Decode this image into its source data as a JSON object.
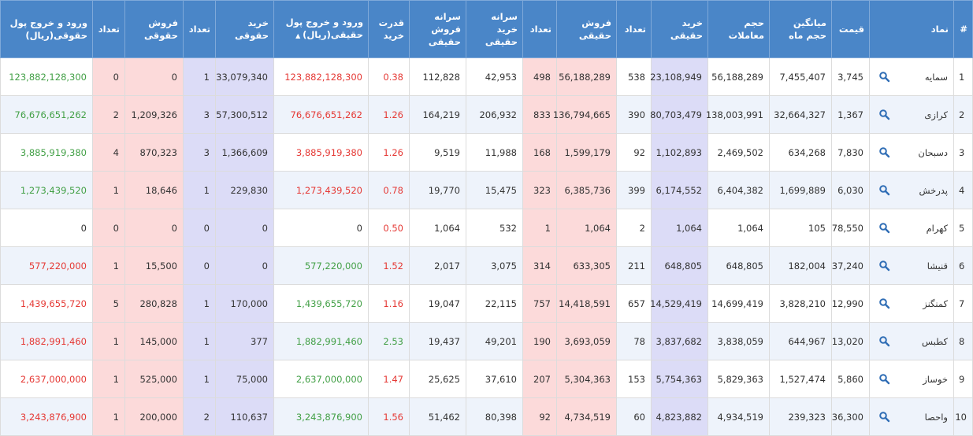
{
  "table": {
    "headers": [
      "#",
      "نماد",
      "قیمت",
      "میانگین حجم ماه",
      "حجم معاملات",
      "خرید حقیقی",
      "تعداد",
      "فروش حقیقی",
      "تعداد",
      "سرانه خرید حقیقی",
      "سرانه فروش حقیقی",
      "قدرت خرید",
      "ورود و خروج پول حقیقی(ریال)",
      "خرید حقوقی",
      "تعداد",
      "فروش حقوقی",
      "تعداد",
      "ورود و خروج پول حقوقی(ریال)"
    ],
    "rows": [
      [
        "1",
        "سمایه",
        "3,745",
        "7,455,407",
        "56,188,289",
        "23,108,949",
        "538",
        "56,188,289",
        "498",
        "42,953",
        "112,828",
        "0.38",
        "123,882,128,300",
        "33,079,340",
        "1",
        "0",
        "0",
        "123,882,128,300"
      ],
      [
        "2",
        "کرازی",
        "1,367",
        "32,664,327",
        "138,003,991",
        "80,703,479",
        "390",
        "136,794,665",
        "833",
        "206,932",
        "164,219",
        "1.26",
        "76,676,651,262",
        "57,300,512",
        "3",
        "1,209,326",
        "2",
        "76,676,651,262"
      ],
      [
        "3",
        "دسبحان",
        "7,830",
        "634,268",
        "2,469,502",
        "1,102,893",
        "92",
        "1,599,179",
        "168",
        "11,988",
        "9,519",
        "1.26",
        "3,885,919,380",
        "1,366,609",
        "3",
        "870,323",
        "4",
        "3,885,919,380"
      ],
      [
        "4",
        "پدرخش",
        "6,030",
        "1,699,889",
        "6,404,382",
        "6,174,552",
        "399",
        "6,385,736",
        "323",
        "15,475",
        "19,770",
        "0.78",
        "1,273,439,520",
        "229,830",
        "1",
        "18,646",
        "1",
        "1,273,439,520"
      ],
      [
        "5",
        "کهرام",
        "78,550",
        "105",
        "1,064",
        "1,064",
        "2",
        "1,064",
        "1",
        "532",
        "1,064",
        "0.50",
        "0",
        "0",
        "0",
        "0",
        "0",
        "0"
      ],
      [
        "6",
        "قنیشا",
        "37,240",
        "182,004",
        "648,805",
        "648,805",
        "211",
        "633,305",
        "314",
        "3,075",
        "2,017",
        "1.52",
        "577,220,000",
        "0",
        "0",
        "15,500",
        "1",
        "577,220,000"
      ],
      [
        "7",
        "کمنگنز",
        "12,990",
        "3,828,210",
        "14,699,419",
        "14,529,419",
        "657",
        "14,418,591",
        "757",
        "22,115",
        "19,047",
        "1.16",
        "1,439,655,720",
        "170,000",
        "1",
        "280,828",
        "5",
        "1,439,655,720"
      ],
      [
        "8",
        "کطبس",
        "13,020",
        "644,967",
        "3,838,059",
        "3,837,682",
        "78",
        "3,693,059",
        "190",
        "49,201",
        "19,437",
        "2.53",
        "1,882,991,460",
        "377",
        "1",
        "145,000",
        "1",
        "1,882,991,460"
      ],
      [
        "9",
        "خوساز",
        "5,860",
        "1,527,474",
        "5,829,363",
        "5,754,363",
        "153",
        "5,304,363",
        "207",
        "37,610",
        "25,625",
        "1.47",
        "2,637,000,000",
        "75,000",
        "1",
        "525,000",
        "1",
        "2,637,000,000"
      ],
      [
        "10",
        "واحصا",
        "36,300",
        "239,323",
        "4,934,519",
        "4,823,882",
        "60",
        "4,734,519",
        "92",
        "80,398",
        "51,462",
        "1.56",
        "3,243,876,900",
        "110,637",
        "2",
        "200,000",
        "1",
        "3,243,876,900"
      ]
    ],
    "accent_colors": [
      [
        "#e53935",
        "#e53935",
        "#43a047"
      ],
      [
        "#e53935",
        "#e53935",
        "#43a047"
      ],
      [
        "#e53935",
        "#e53935",
        "#43a047"
      ],
      [
        "#e53935",
        "#e53935",
        "#43a047"
      ],
      [
        "#e53935",
        "#333333",
        "#333333"
      ],
      [
        "#e53935",
        "#43a047",
        "#e53935"
      ],
      [
        "#e53935",
        "#43a047",
        "#e53935"
      ],
      [
        "#43a047",
        "#43a047",
        "#e53935"
      ],
      [
        "#e53935",
        "#43a047",
        "#e53935"
      ],
      [
        "#e53935",
        "#43a047",
        "#e53935"
      ]
    ]
  }
}
